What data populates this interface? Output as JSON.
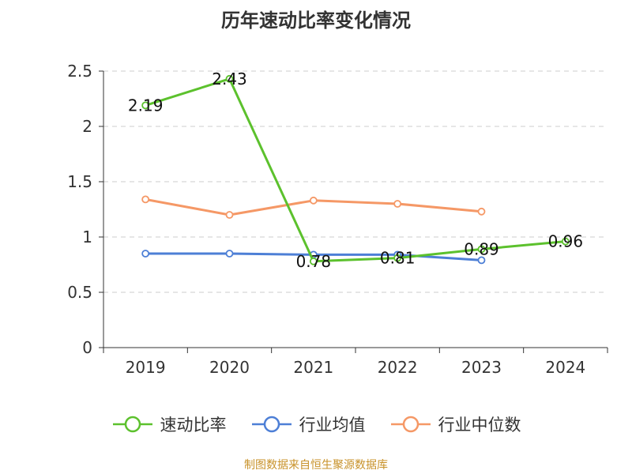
{
  "title": "历年速动比率变化情况",
  "source_note": "制图数据来自恒生聚源数据库",
  "chart_data": {
    "type": "line",
    "categories": [
      "2019",
      "2020",
      "2021",
      "2022",
      "2023",
      "2024"
    ],
    "ylim": [
      0,
      2.5
    ],
    "yticks": [
      0,
      0.5,
      1,
      1.5,
      2,
      2.5
    ],
    "ytick_labels": [
      "0",
      "0.5",
      "1",
      "1.5",
      "2",
      "2.5"
    ],
    "grid": true,
    "legend_position": "bottom",
    "series": [
      {
        "name": "速动比率",
        "color": "#5cc12d",
        "values": [
          2.19,
          2.43,
          0.78,
          0.81,
          0.89,
          0.96
        ],
        "data_labels": [
          "2.19",
          "2.43",
          "0.78",
          "0.81",
          "0.89",
          "0.96"
        ]
      },
      {
        "name": "行业均值",
        "color": "#4d7fd6",
        "values": [
          0.85,
          0.85,
          0.84,
          0.84,
          0.79,
          null
        ]
      },
      {
        "name": "行业中位数",
        "color": "#f59866",
        "values": [
          1.34,
          1.2,
          1.33,
          1.3,
          1.23,
          null
        ]
      }
    ]
  }
}
